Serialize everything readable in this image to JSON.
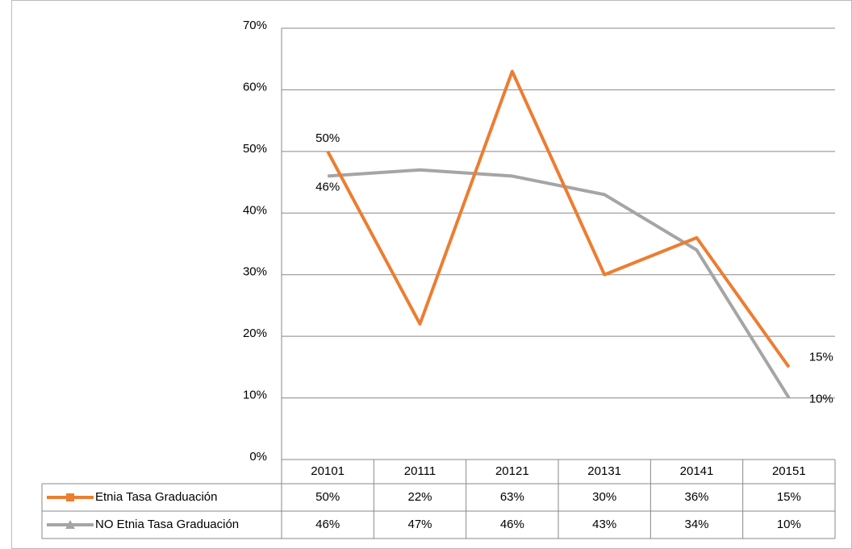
{
  "chart_data": {
    "type": "line",
    "categories": [
      "20101",
      "20111",
      "20121",
      "20131",
      "20141",
      "20151"
    ],
    "series": [
      {
        "name": "Etnia Tasa Graduación",
        "color": "#ed7d31",
        "marker": "square",
        "values": [
          50,
          22,
          63,
          30,
          36,
          15
        ],
        "value_labels": [
          "50%",
          "22%",
          "63%",
          "30%",
          "36%",
          "15%"
        ]
      },
      {
        "name": "NO Etnia Tasa Graduación",
        "color": "#a5a5a5",
        "marker": "triangle",
        "values": [
          46,
          47,
          46,
          43,
          34,
          10
        ],
        "value_labels": [
          "46%",
          "47%",
          "46%",
          "43%",
          "34%",
          "10%"
        ]
      }
    ],
    "ylim": [
      0,
      70
    ],
    "yticks": [
      {
        "value": 0,
        "label": "0%"
      },
      {
        "value": 10,
        "label": "10%"
      },
      {
        "value": 20,
        "label": "20%"
      },
      {
        "value": 30,
        "label": "30%"
      },
      {
        "value": 40,
        "label": "40%"
      },
      {
        "value": 50,
        "label": "50%"
      },
      {
        "value": 60,
        "label": "60%"
      },
      {
        "value": 70,
        "label": "70%"
      }
    ],
    "grid": true,
    "data_table": true
  }
}
